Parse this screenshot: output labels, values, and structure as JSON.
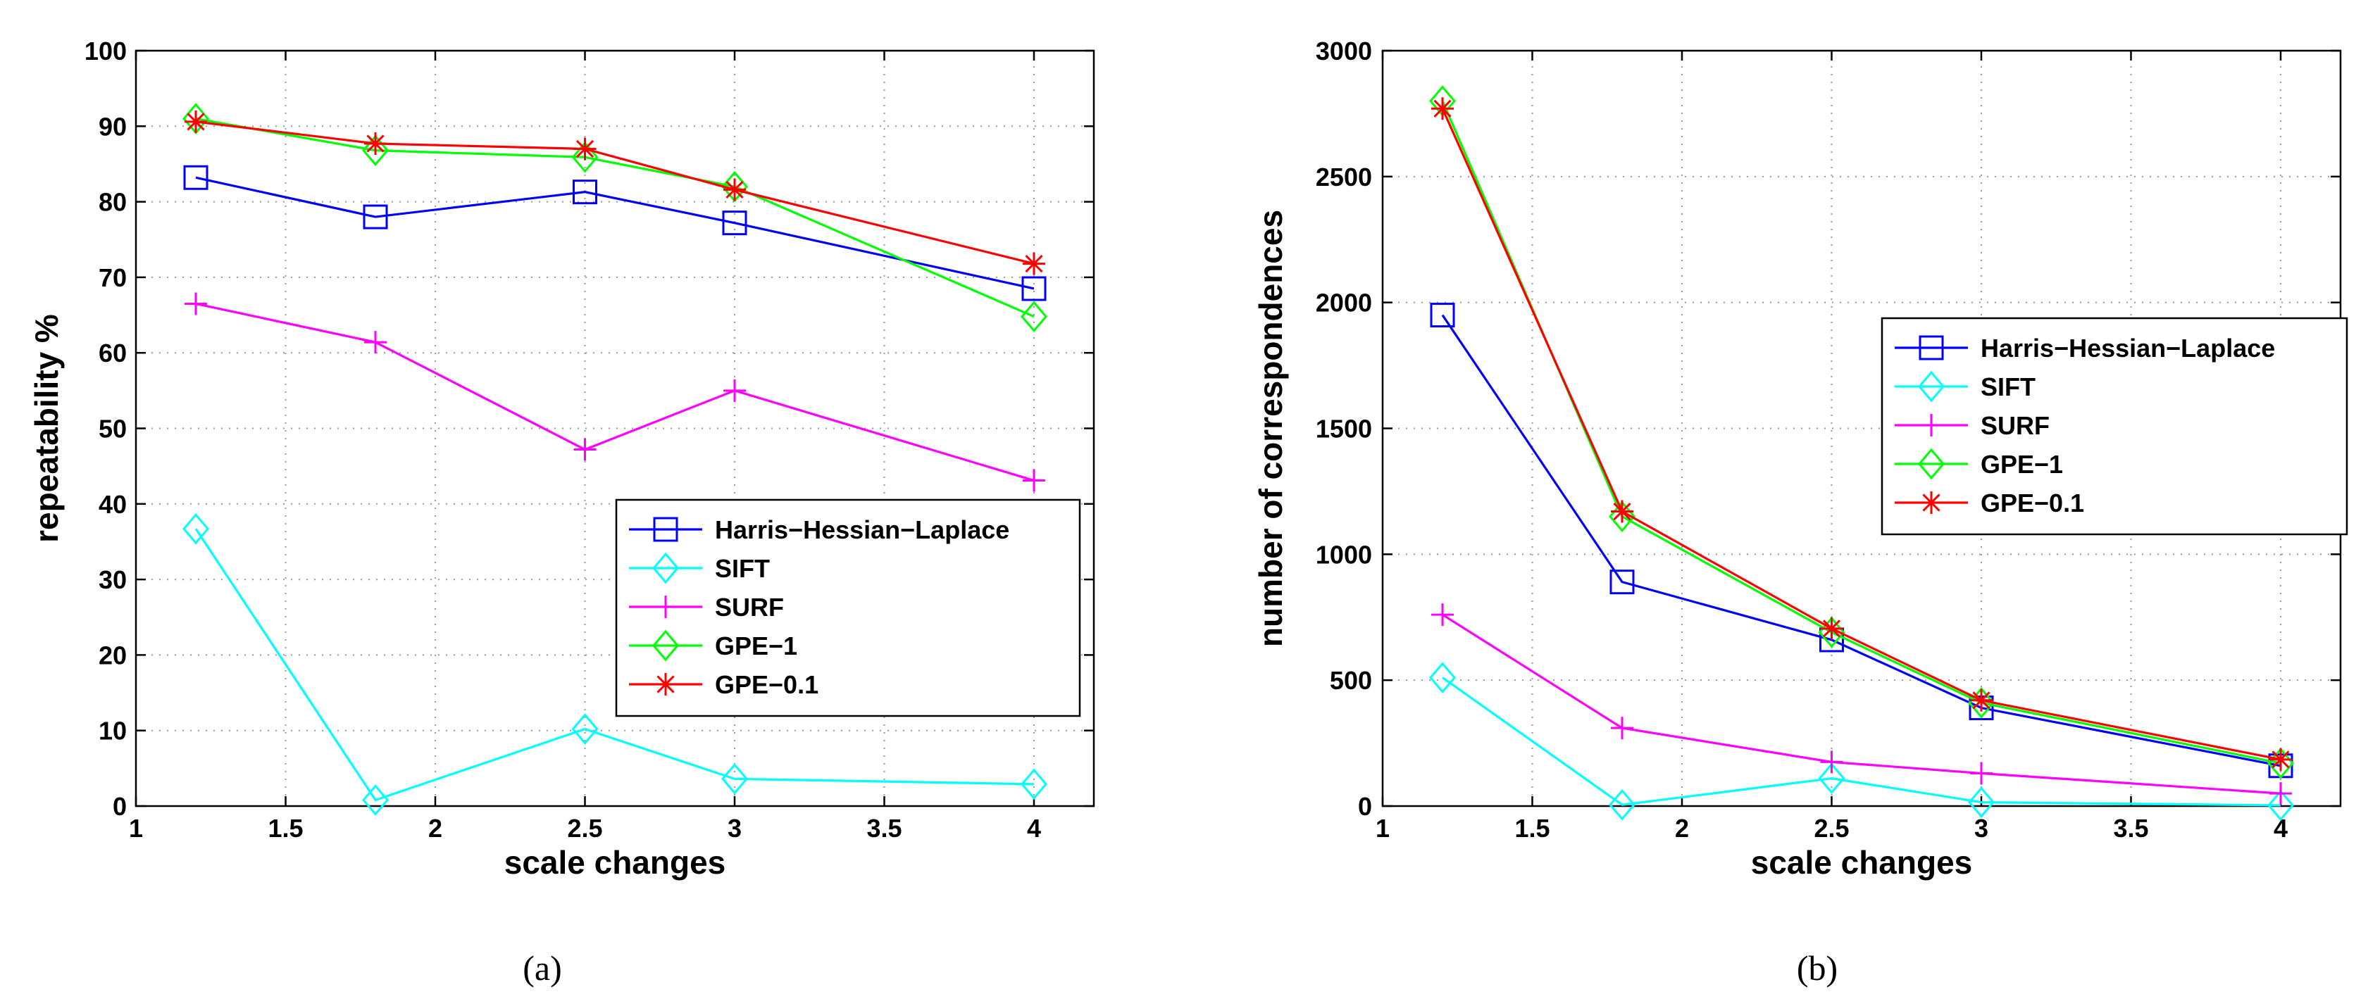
{
  "chart_data": [
    {
      "type": "line",
      "caption": "(a)",
      "xlabel": "scale changes",
      "ylabel": "repeatability %",
      "xlim": [
        1,
        4.2
      ],
      "ylim": [
        0,
        100
      ],
      "xticks": [
        1,
        1.5,
        2,
        2.5,
        3,
        3.5,
        4
      ],
      "xtick_labels": [
        "1",
        "1.5",
        "2",
        "2.5",
        "3",
        "3.5",
        "4"
      ],
      "yticks": [
        0,
        10,
        20,
        30,
        40,
        50,
        60,
        70,
        80,
        90,
        100
      ],
      "ytick_labels": [
        "0",
        "10",
        "20",
        "30",
        "40",
        "50",
        "60",
        "70",
        "80",
        "90",
        "100"
      ],
      "grid": true,
      "legend_position": "bottom-right",
      "x": [
        1.2,
        1.8,
        2.5,
        3,
        4
      ],
      "series": [
        {
          "name": "Harris−Hessian−Laplace",
          "color": "#0000ff",
          "marker": "square",
          "values": [
            83.2,
            78,
            81.3,
            77.2,
            68.5
          ]
        },
        {
          "name": "SIFT",
          "color": "#00ffff",
          "marker": "diamond",
          "values": [
            36.7,
            0.8,
            10.2,
            3.6,
            2.9
          ]
        },
        {
          "name": "SURF",
          "color": "#ff00ff",
          "marker": "plus",
          "values": [
            66.5,
            61.4,
            47.2,
            55,
            43.1
          ]
        },
        {
          "name": "GPE−1",
          "color": "#00ff00",
          "marker": "diamond",
          "values": [
            91,
            86.8,
            85.9,
            82,
            64.8
          ]
        },
        {
          "name": "GPE−0.1",
          "color": "#ff0000",
          "marker": "asterisk",
          "values": [
            90.6,
            87.7,
            87,
            81.6,
            71.8
          ]
        }
      ]
    },
    {
      "type": "line",
      "caption": "(b)",
      "xlabel": "scale changes",
      "ylabel": "number of correspondences",
      "xlim": [
        1,
        4.2
      ],
      "ylim": [
        0,
        3000
      ],
      "xticks": [
        1,
        1.5,
        2,
        2.5,
        3,
        3.5,
        4
      ],
      "xtick_labels": [
        "1",
        "1.5",
        "2",
        "2.5",
        "3",
        "3.5",
        "4"
      ],
      "yticks": [
        0,
        500,
        1000,
        1500,
        2000,
        2500,
        3000
      ],
      "ytick_labels": [
        "0",
        "500",
        "1000",
        "1500",
        "2000",
        "2500",
        "3000"
      ],
      "grid": true,
      "legend_position": "center-right",
      "x": [
        1.2,
        1.8,
        2.5,
        3,
        4
      ],
      "series": [
        {
          "name": "Harris−Hessian−Laplace",
          "color": "#0000ff",
          "marker": "square",
          "values": [
            1950,
            890,
            660,
            390,
            160
          ]
        },
        {
          "name": "SIFT",
          "color": "#00ffff",
          "marker": "diamond",
          "values": [
            510,
            5,
            110,
            15,
            3
          ]
        },
        {
          "name": "SURF",
          "color": "#ff00ff",
          "marker": "plus",
          "values": [
            760,
            310,
            175,
            130,
            50
          ]
        },
        {
          "name": "GPE−1",
          "color": "#00ff00",
          "marker": "diamond",
          "values": [
            2800,
            1150,
            690,
            410,
            170
          ]
        },
        {
          "name": "GPE−0.1",
          "color": "#ff0000",
          "marker": "asterisk",
          "values": [
            2770,
            1170,
            705,
            420,
            185
          ]
        }
      ]
    }
  ]
}
